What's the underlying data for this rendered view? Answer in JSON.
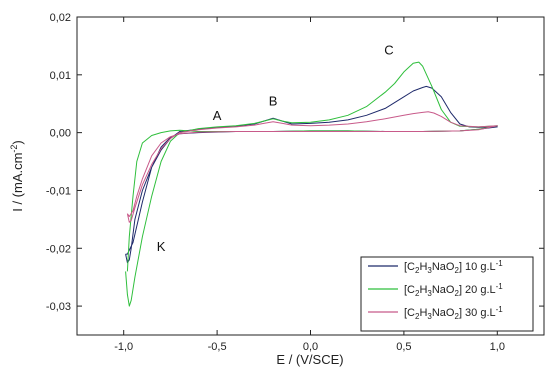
{
  "chart_data": {
    "type": "line",
    "title": "",
    "xlabel": "E / (V/SCE)",
    "ylabel_main": "I / (mA.cm",
    "ylabel_sup": "-2",
    "ylabel_end": ")",
    "xlim": [
      -1.25,
      1.25
    ],
    "ylim": [
      -0.035,
      0.02
    ],
    "xticks": [
      {
        "v": -1.0,
        "label": "-1,0"
      },
      {
        "v": -0.5,
        "label": "-0,5"
      },
      {
        "v": 0.0,
        "label": "0,0"
      },
      {
        "v": 0.5,
        "label": "0,5"
      },
      {
        "v": 1.0,
        "label": "1,0"
      }
    ],
    "yticks": [
      {
        "v": 0.02,
        "label": "0,02"
      },
      {
        "v": 0.01,
        "label": "0,01"
      },
      {
        "v": 0.0,
        "label": "0,00"
      },
      {
        "v": -0.01,
        "label": "-0,01"
      },
      {
        "v": -0.02,
        "label": "-0,02"
      },
      {
        "v": -0.03,
        "label": "-0,03"
      }
    ],
    "annotations": [
      {
        "text": "A",
        "x": -0.5,
        "y": 0.0022
      },
      {
        "text": "B",
        "x": -0.2,
        "y": 0.0047
      },
      {
        "text": "C",
        "x": 0.42,
        "y": 0.0135
      },
      {
        "text": "K",
        "x": -0.8,
        "y": -0.0205
      }
    ],
    "legend_position": "bottom-right",
    "series": [
      {
        "label_pre": "[C",
        "sub1": "2",
        "mid1": "H",
        "sub2": "3",
        "mid2": "NaO",
        "sub3": "2",
        "label_post": "] 10 g.L",
        "sup": "-1",
        "color": "#1f2a6b",
        "x": [
          -0.99,
          -0.98,
          -0.97,
          -0.96,
          -0.94,
          -0.9,
          -0.85,
          -0.8,
          -0.75,
          -0.7,
          -0.6,
          -0.5,
          -0.4,
          -0.3,
          -0.25,
          -0.2,
          -0.15,
          -0.1,
          0.0,
          0.1,
          0.2,
          0.3,
          0.4,
          0.5,
          0.55,
          0.6,
          0.62,
          0.65,
          0.7,
          0.75,
          0.8,
          0.85,
          0.9,
          1.0,
          0.9,
          0.8,
          0.6,
          0.4,
          0.2,
          0.0,
          -0.2,
          -0.4,
          -0.6,
          -0.7,
          -0.75,
          -0.8,
          -0.85,
          -0.9,
          -0.95,
          -0.98,
          -0.99
        ],
        "y": [
          -0.021,
          -0.0225,
          -0.022,
          -0.02,
          -0.015,
          -0.01,
          -0.006,
          -0.003,
          -0.001,
          0.0002,
          0.0006,
          0.0009,
          0.0011,
          0.0015,
          0.002,
          0.0025,
          0.002,
          0.0015,
          0.0016,
          0.0018,
          0.0022,
          0.003,
          0.0042,
          0.0062,
          0.0072,
          0.0078,
          0.008,
          0.0077,
          0.0062,
          0.0035,
          0.0015,
          0.001,
          0.0009,
          0.001,
          0.0006,
          0.0003,
          0.0002,
          0.0002,
          0.0003,
          0.0003,
          0.0002,
          0.0002,
          0.0,
          -0.0002,
          -0.0008,
          -0.0025,
          -0.006,
          -0.012,
          -0.019,
          -0.021,
          -0.021
        ]
      },
      {
        "label_pre": "[C",
        "sub1": "2",
        "mid1": "H",
        "sub2": "3",
        "mid2": "NaO",
        "sub3": "2",
        "label_post": "] 20 g.L",
        "sup": "-1",
        "color": "#2fbf3c",
        "x": [
          -0.99,
          -0.98,
          -0.97,
          -0.96,
          -0.94,
          -0.9,
          -0.85,
          -0.8,
          -0.75,
          -0.7,
          -0.6,
          -0.5,
          -0.4,
          -0.3,
          -0.25,
          -0.2,
          -0.15,
          -0.1,
          0.0,
          0.1,
          0.2,
          0.3,
          0.4,
          0.45,
          0.5,
          0.55,
          0.58,
          0.6,
          0.65,
          0.7,
          0.75,
          0.8,
          0.9,
          1.0,
          0.9,
          0.8,
          0.6,
          0.4,
          0.2,
          0.0,
          -0.2,
          -0.4,
          -0.6,
          -0.7,
          -0.75,
          -0.8,
          -0.85,
          -0.9,
          -0.93,
          -0.95,
          -0.97,
          -0.98
        ],
        "y": [
          -0.024,
          -0.028,
          -0.03,
          -0.029,
          -0.025,
          -0.018,
          -0.011,
          -0.005,
          -0.0015,
          0.0,
          0.0007,
          0.001,
          0.0012,
          0.0016,
          0.002,
          0.0024,
          0.002,
          0.0017,
          0.0018,
          0.0022,
          0.003,
          0.0045,
          0.007,
          0.0085,
          0.0105,
          0.012,
          0.0122,
          0.0115,
          0.008,
          0.004,
          0.0018,
          0.0011,
          0.001,
          0.0012,
          0.0006,
          0.0003,
          0.0002,
          0.0002,
          0.0003,
          0.0003,
          0.0002,
          0.0002,
          0.0002,
          0.0004,
          0.0003,
          0.0,
          -0.0005,
          -0.0018,
          -0.005,
          -0.011,
          -0.018,
          -0.024
        ]
      },
      {
        "label_pre": "[C",
        "sub1": "2",
        "mid1": "H",
        "sub2": "3",
        "mid2": "NaO",
        "sub3": "2",
        "label_post": "] 30 g.L",
        "sup": "-1",
        "color": "#c85a8a",
        "x": [
          -0.98,
          -0.97,
          -0.96,
          -0.94,
          -0.9,
          -0.85,
          -0.8,
          -0.75,
          -0.7,
          -0.6,
          -0.5,
          -0.4,
          -0.3,
          -0.25,
          -0.2,
          -0.15,
          -0.1,
          0.0,
          0.1,
          0.2,
          0.3,
          0.4,
          0.5,
          0.55,
          0.6,
          0.63,
          0.66,
          0.7,
          0.75,
          0.8,
          0.9,
          1.0,
          0.9,
          0.8,
          0.6,
          0.4,
          0.2,
          0.0,
          -0.2,
          -0.4,
          -0.6,
          -0.7,
          -0.75,
          -0.8,
          -0.85,
          -0.9,
          -0.93,
          -0.95,
          -0.97,
          -0.98
        ],
        "y": [
          -0.014,
          -0.0155,
          -0.0152,
          -0.013,
          -0.009,
          -0.0055,
          -0.0028,
          -0.001,
          0.0,
          0.0005,
          0.0008,
          0.001,
          0.0013,
          0.0016,
          0.0019,
          0.0016,
          0.0013,
          0.0012,
          0.0013,
          0.0015,
          0.0019,
          0.0024,
          0.003,
          0.0033,
          0.0035,
          0.0036,
          0.0034,
          0.0028,
          0.0018,
          0.0012,
          0.001,
          0.0012,
          0.0005,
          0.0003,
          0.0002,
          0.0002,
          0.0002,
          0.0002,
          0.0002,
          0.0002,
          0.0001,
          -0.0002,
          -0.0007,
          -0.0018,
          -0.004,
          -0.008,
          -0.011,
          -0.0135,
          -0.0145,
          -0.014
        ]
      }
    ]
  }
}
